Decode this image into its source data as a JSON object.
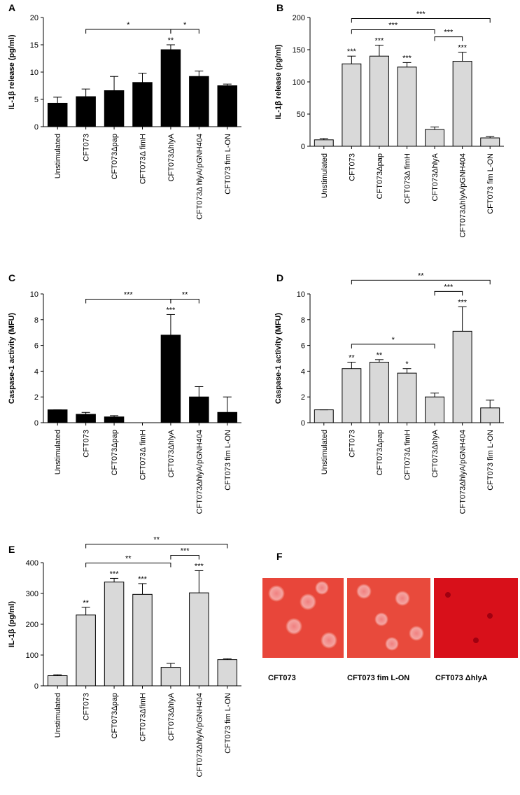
{
  "chart_data": [
    {
      "type": "bar",
      "label": "A",
      "ylabel": "IL-1β release (pg/ml)",
      "color": "#000000",
      "categories": [
        "Unstimulated",
        "CFT073",
        "CFT073Δpap",
        "CFT073Δ fimH",
        "CFT073ΔhlyA",
        "CFT073Δ hlyA/pGNH404",
        "CFT073 fim L-ON"
      ],
      "values": [
        4.3,
        5.5,
        6.6,
        8.1,
        14.1,
        9.2,
        7.5
      ],
      "errors": [
        1.1,
        1.4,
        2.6,
        1.7,
        0.9,
        1.0,
        0.3
      ],
      "bar_annotations": [
        null,
        null,
        null,
        null,
        "**",
        null,
        null
      ],
      "brackets": [
        {
          "from": 1,
          "to": 4,
          "label": "*"
        },
        {
          "from": 4,
          "to": 5,
          "label": "*"
        }
      ],
      "ylim": [
        0,
        20
      ],
      "yticks": [
        0,
        5,
        10,
        15,
        20
      ]
    },
    {
      "type": "bar",
      "label": "B",
      "ylabel": "IL-1β release (pg/ml)",
      "color": "#d9d9d9",
      "categories": [
        "Unstimulated",
        "CFT073",
        "CFT073Δpap",
        "CFT073Δ fimH",
        "CFT073ΔhlyA",
        "CFT073ΔhlyA/pGNH404",
        "CFT073 fim L-ON"
      ],
      "values": [
        10,
        128,
        140,
        123,
        26,
        132,
        13
      ],
      "errors": [
        2,
        12,
        17,
        7,
        4,
        14,
        2
      ],
      "bar_annotations": [
        null,
        "***",
        "***",
        "***",
        null,
        "***",
        null
      ],
      "brackets": [
        {
          "from": 1,
          "to": 6,
          "label": "***"
        },
        {
          "from": 1,
          "to": 4,
          "label": "***"
        },
        {
          "from": 4,
          "to": 5,
          "label": "***"
        }
      ],
      "ylim": [
        0,
        200
      ],
      "yticks": [
        0,
        50,
        100,
        150,
        200
      ]
    },
    {
      "type": "bar",
      "label": "C",
      "ylabel": "Caspase-1 activity (MFU)",
      "color": "#000000",
      "categories": [
        "Unstimulated",
        "CFT073",
        "CFT073Δpap",
        "CFT073Δ fimH",
        "CFT073ΔhlyA",
        "CFT073ΔhlyA/pGNH404",
        "CFT073 fim L-ON"
      ],
      "values": [
        1.0,
        0.65,
        0.45,
        0,
        6.8,
        2.0,
        0.8
      ],
      "errors": [
        0,
        0.15,
        0.1,
        0,
        1.6,
        0.8,
        1.2
      ],
      "bar_annotations": [
        null,
        null,
        null,
        null,
        "***",
        null,
        null
      ],
      "brackets": [
        {
          "from": 1,
          "to": 4,
          "label": "***"
        },
        {
          "from": 4,
          "to": 5,
          "label": "**"
        }
      ],
      "ylim": [
        0,
        10
      ],
      "yticks": [
        0,
        2,
        4,
        6,
        8,
        10
      ]
    },
    {
      "type": "bar",
      "label": "D",
      "ylabel": "Caspase-1 activity (MFU)",
      "color": "#d9d9d9",
      "categories": [
        "Unstimulated",
        "CFT073",
        "CFT073Δpap",
        "CFT073Δ fimH",
        "CFT073ΔhlyA",
        "CFT073ΔhlyA/pGNH404",
        "CFT073 fim L-ON"
      ],
      "values": [
        1.0,
        4.2,
        4.7,
        3.85,
        2.0,
        7.1,
        1.15
      ],
      "errors": [
        0,
        0.5,
        0.2,
        0.35,
        0.3,
        1.9,
        0.6
      ],
      "bar_annotations": [
        null,
        "**",
        "**",
        "*",
        null,
        "***",
        null
      ],
      "brackets": [
        {
          "from": 1,
          "to": 6,
          "label": "**"
        },
        {
          "from": 1,
          "to": 4,
          "label": "*"
        },
        {
          "from": 4,
          "to": 5,
          "label": "***"
        }
      ],
      "ylim": [
        0,
        10
      ],
      "yticks": [
        0,
        2,
        4,
        6,
        8,
        10
      ]
    },
    {
      "type": "bar",
      "label": "E",
      "ylabel": "IL-1β (pg/ml)",
      "color": "#d9d9d9",
      "categories": [
        "Unstimulated",
        "CFT073",
        "CFT073Δpap",
        "CFT073ΔfimH",
        "CFT073ΔhlyA",
        "CFT073ΔhlyA/pGNH404",
        "CFT073 fim L-ON"
      ],
      "values": [
        33,
        230,
        337,
        297,
        60,
        302,
        85
      ],
      "errors": [
        3,
        25,
        12,
        35,
        13,
        72,
        3
      ],
      "bar_annotations": [
        null,
        "**",
        "***",
        "***",
        null,
        "***",
        null
      ],
      "brackets": [
        {
          "from": 1,
          "to": 6,
          "label": "**"
        },
        {
          "from": 1,
          "to": 4,
          "label": "**"
        },
        {
          "from": 4,
          "to": 5,
          "label": "***"
        }
      ],
      "ylim": [
        0,
        400
      ],
      "yticks": [
        0,
        100,
        200,
        300,
        400
      ]
    }
  ],
  "panel_f": {
    "label": "F",
    "images": [
      "CFT073",
      "CFT073 fim L-ON",
      "CFT073  ΔhlyA"
    ]
  }
}
